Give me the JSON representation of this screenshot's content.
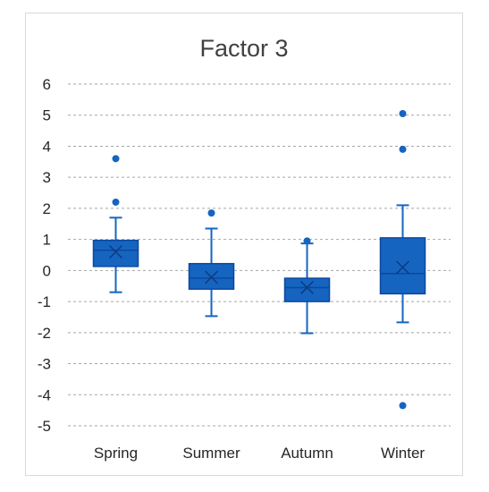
{
  "chart_data": {
    "type": "box",
    "title": "Factor 3",
    "xlabel": "",
    "ylabel": "",
    "ylim": [
      -5,
      6
    ],
    "yticks": [
      6,
      5,
      4,
      3,
      2,
      1,
      0,
      -1,
      -2,
      -3,
      -4,
      -5
    ],
    "grid": true,
    "legend": "none",
    "color": "#1565c0",
    "categories": [
      "Spring",
      "Summer",
      "Autumn",
      "Winter"
    ],
    "boxes": [
      {
        "category": "Spring",
        "whisker_low": -0.7,
        "q1": 0.13,
        "median": 0.65,
        "q3": 0.97,
        "whisker_high": 1.7,
        "mean": 0.6,
        "outliers": [
          3.6,
          2.2
        ]
      },
      {
        "category": "Summer",
        "whisker_low": -1.47,
        "q1": -0.6,
        "median": -0.25,
        "q3": 0.22,
        "whisker_high": 1.35,
        "mean": -0.22,
        "outliers": [
          1.85
        ]
      },
      {
        "category": "Autumn",
        "whisker_low": -2.02,
        "q1": -1.0,
        "median": -0.55,
        "q3": -0.25,
        "whisker_high": 0.87,
        "mean": -0.55,
        "outliers": [
          0.95
        ]
      },
      {
        "category": "Winter",
        "whisker_low": -1.67,
        "q1": -0.75,
        "median": -0.1,
        "q3": 1.05,
        "whisker_high": 2.1,
        "mean": 0.1,
        "outliers": [
          5.05,
          3.9,
          -4.35
        ]
      }
    ]
  }
}
